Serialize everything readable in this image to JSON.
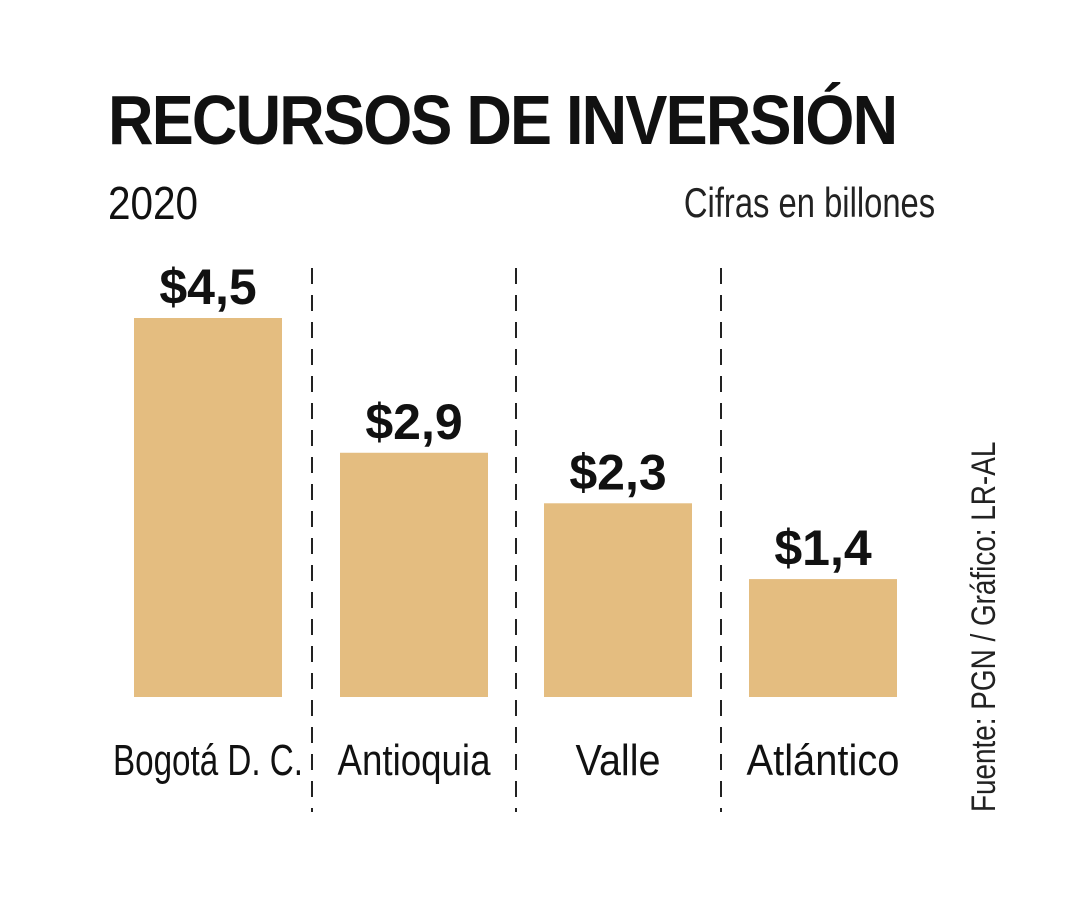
{
  "header": {
    "title": "RECURSOS DE INVERSIÓN",
    "year": "2020",
    "units": "Cifras en billones"
  },
  "footer": {
    "source": "Fuente: PGN / Gráfico: LR-AL"
  },
  "colors": {
    "bar": "#e4bd80",
    "text": "#111111",
    "divider": "#222222",
    "background": "#ffffff"
  },
  "chart_data": {
    "type": "bar",
    "title": "RECURSOS DE INVERSIÓN",
    "subtitle": "2020",
    "note": "Cifras en billones",
    "categories": [
      "Bogotá D. C.",
      "Antioquia",
      "Valle",
      "Atlántico"
    ],
    "values": [
      4.5,
      2.9,
      2.3,
      1.4
    ],
    "value_labels": [
      "$4,5",
      "$2,9",
      "$2,3",
      "$1,4"
    ],
    "xlabel": "",
    "ylabel": "",
    "ylim": [
      0,
      4.5
    ],
    "grid": false,
    "axes_visible": false,
    "category_dividers": "dashed"
  }
}
